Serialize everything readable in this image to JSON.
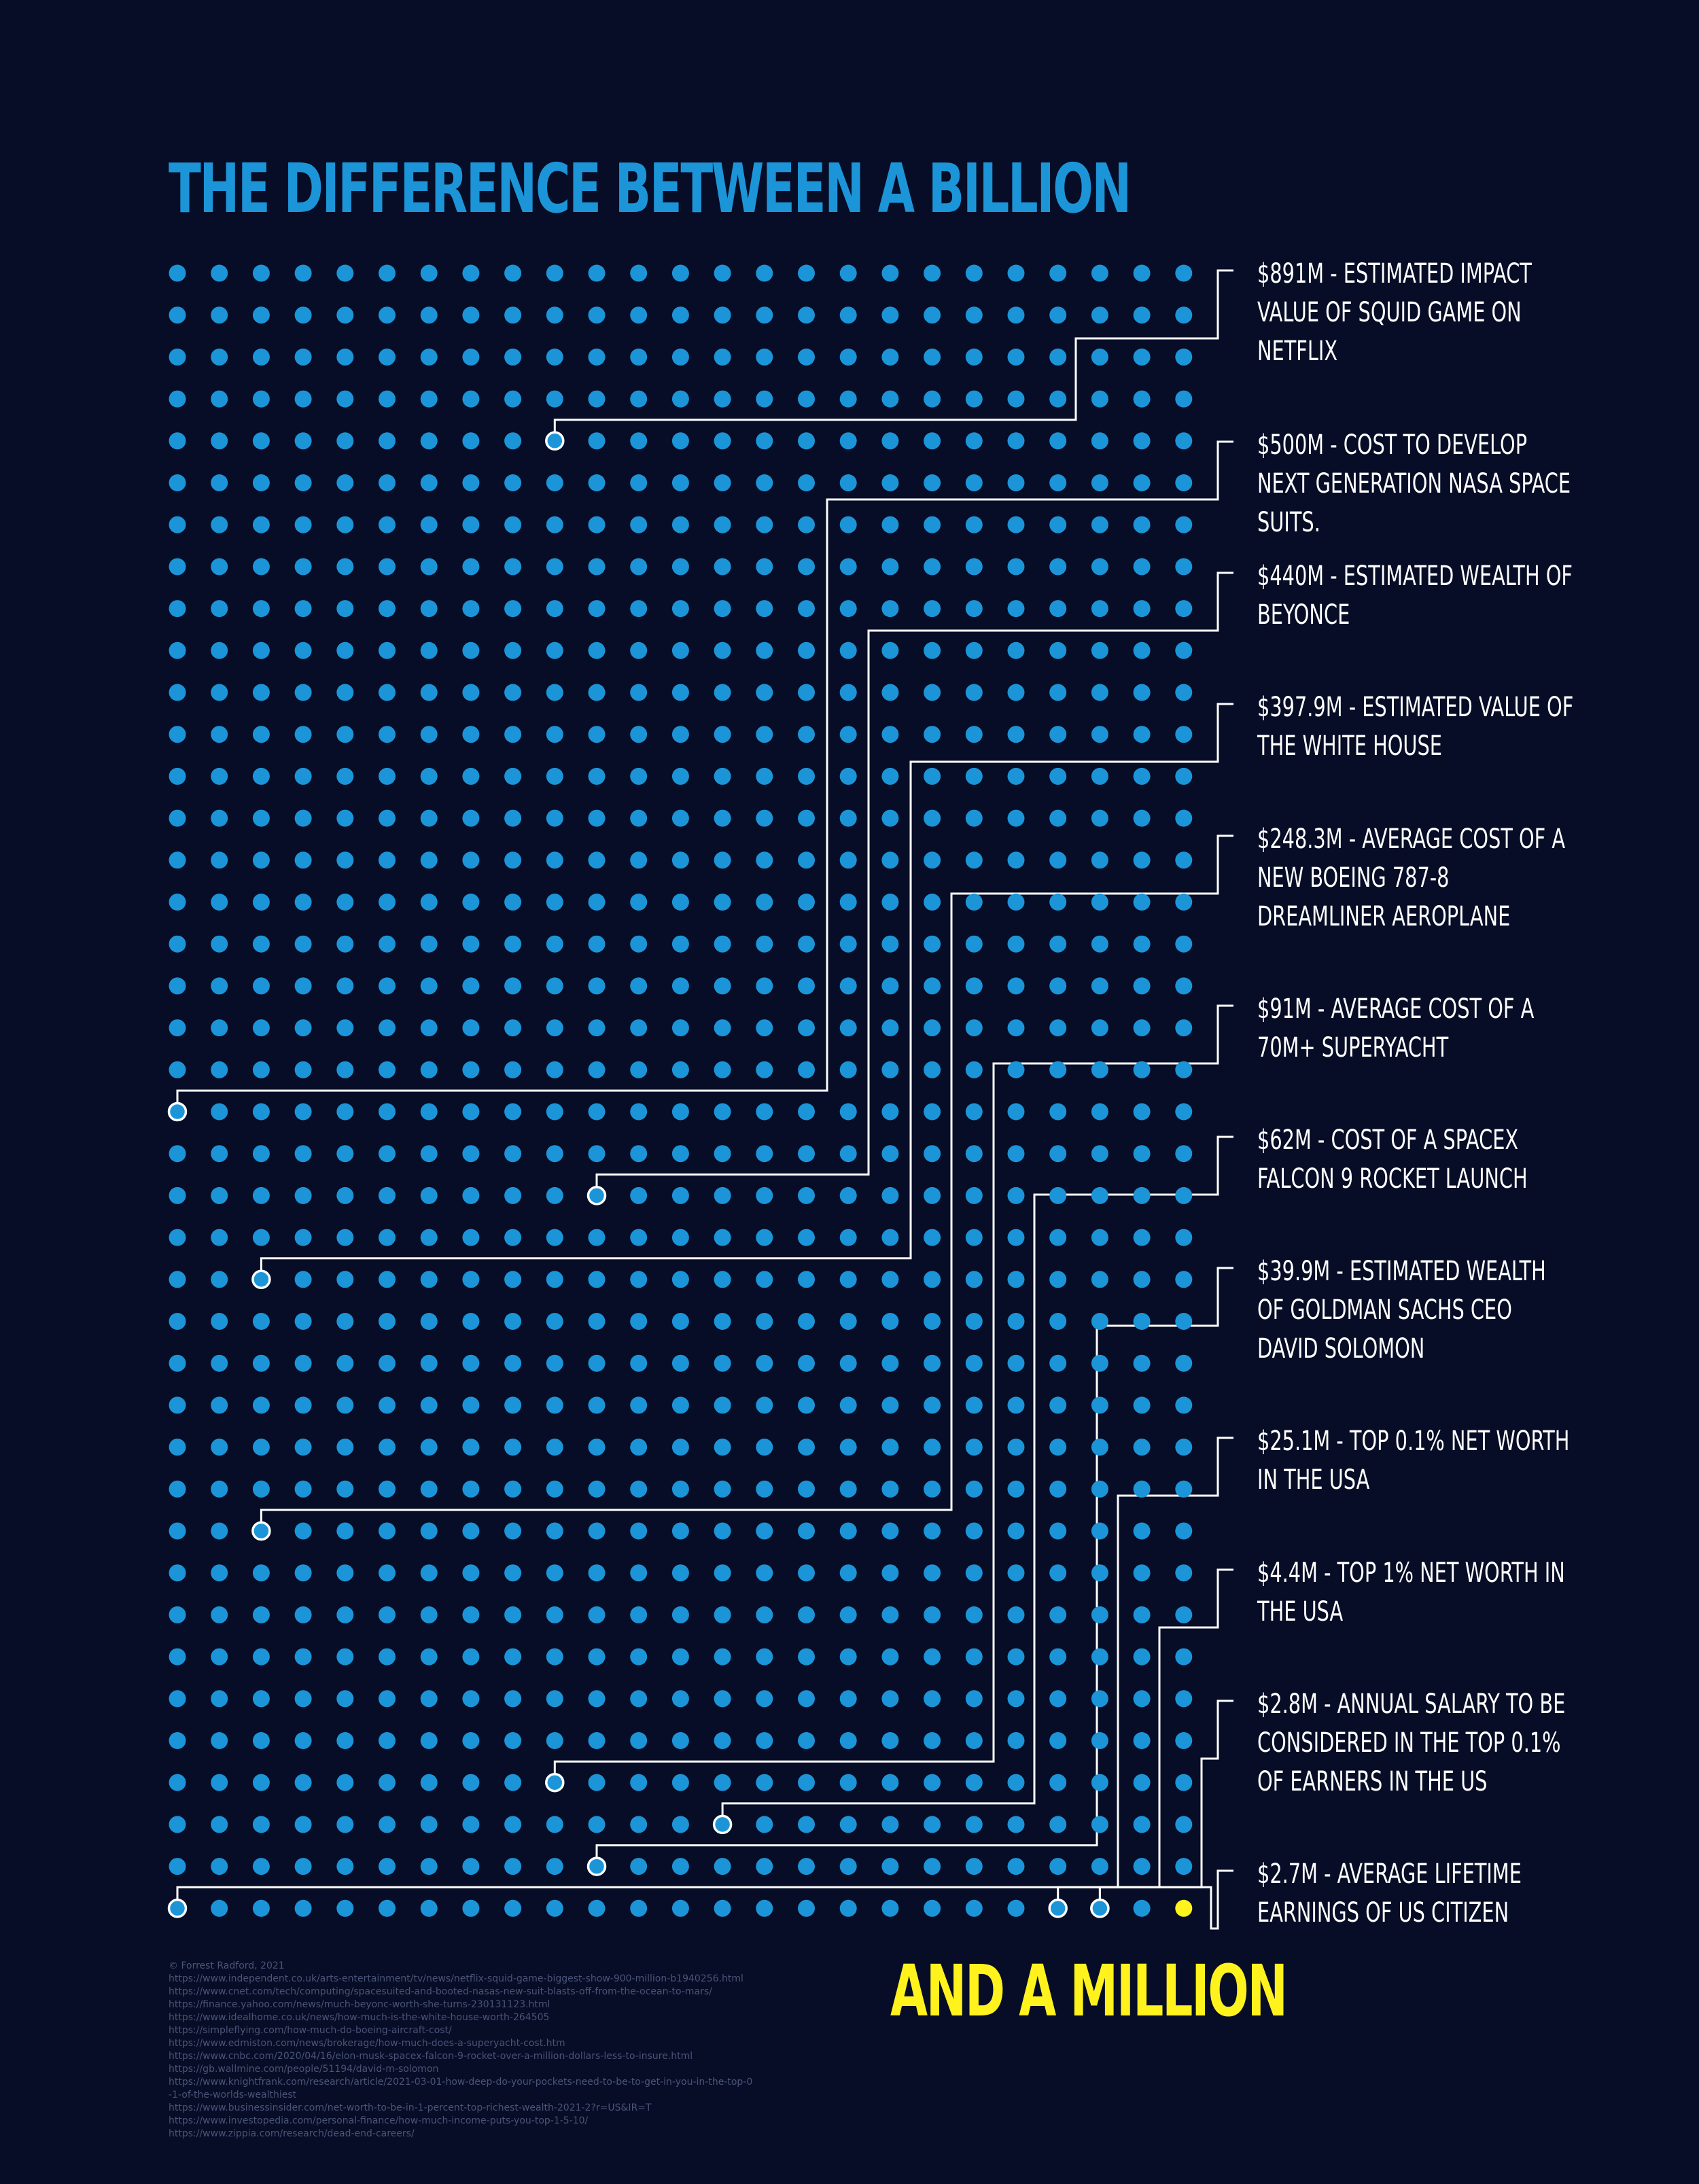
{
  "title": "THE DIFFERENCE BETWEEN A BILLION",
  "subtitle": "AND A MILLION",
  "colors": {
    "background": "#070d26",
    "dot": "#1c95d8",
    "highlight_dot": "#fff21d",
    "marker_dot": "#1c95d8",
    "connector": "#ffffff",
    "title": "#1c95d8",
    "subtitle": "#fff21d"
  },
  "chart_data": {
    "type": "dot-matrix",
    "grid": {
      "columns": 25,
      "rows": 40,
      "dots": 1000
    },
    "unit_per_dot": "$1M",
    "total_represented": "$1B",
    "highlight": {
      "label": "$1M",
      "color": "#fff21d"
    },
    "annotations": [
      {
        "value_millions": 891,
        "label": "$891M - ESTIMATED IMPACT VALUE OF SQUID GAME ON NETFLIX"
      },
      {
        "value_millions": 500,
        "label": "$500M - COST TO DEVELOP NEXT GENERATION NASA SPACE SUITS."
      },
      {
        "value_millions": 440,
        "label": "$440M - ESTIMATED WEALTH OF BEYONCE"
      },
      {
        "value_millions": 397.9,
        "label": "$397.9M - ESTIMATED VALUE OF THE WHITE HOUSE"
      },
      {
        "value_millions": 248.3,
        "label": "$248.3M - AVERAGE COST OF A NEW BOEING 787-8 DREAMLINER AEROPLANE"
      },
      {
        "value_millions": 91,
        "label": "$91M - AVERAGE COST OF A 70M+ SUPERYACHT"
      },
      {
        "value_millions": 62,
        "label": "$62M - COST OF A SPACEX FALCON 9 ROCKET LAUNCH"
      },
      {
        "value_millions": 39.9,
        "label": "$39.9M - ESTIMATED WEALTH OF GOLDMAN SACHS CEO DAVID SOLOMON"
      },
      {
        "value_millions": 25.1,
        "label": "$25.1M - TOP 0.1% NET WORTH IN THE USA"
      },
      {
        "value_millions": 4.4,
        "label": "$4.4M - TOP 1% NET WORTH IN THE USA"
      },
      {
        "value_millions": 2.8,
        "label": "$2.8M - ANNUAL SALARY TO BE CONSIDERED IN THE TOP 0.1% OF EARNERS IN THE US"
      },
      {
        "value_millions": 2.7,
        "label": "$2.7M - AVERAGE LIFETIME EARNINGS OF US CITIZEN"
      }
    ]
  },
  "credits": {
    "author": "© Forrest Radford, 2021",
    "sources": [
      "https://www.independent.co.uk/arts-entertainment/tv/news/netflix-squid-game-biggest-show-900-million-b1940256.html",
      "https://www.cnet.com/tech/computing/spacesuited-and-booted-nasas-new-suit-blasts-off-from-the-ocean-to-mars/",
      "https://finance.yahoo.com/news/much-beyonc-worth-she-turns-230131123.html",
      "https://www.idealhome.co.uk/news/how-much-is-the-white-house-worth-264505",
      "https://simpleflying.com/how-much-do-boeing-aircraft-cost/",
      "https://www.edmiston.com/news/brokerage/how-much-does-a-superyacht-cost.htm",
      "https://www.cnbc.com/2020/04/16/elon-musk-spacex-falcon-9-rocket-over-a-million-dollars-less-to-insure.html",
      "https://gb.wallmine.com/people/51194/david-m-solomon",
      "https://www.knightfrank.com/research/article/2021-03-01-how-deep-do-your-pockets-need-to-be-to-get-in-you-in-the-top-0-1-of-the-worlds-wealthiest",
      "https://www.businessinsider.com/net-worth-to-be-in-1-percent-top-richest-wealth-2021-2?r=US&IR=T",
      "https://www.investopedia.com/personal-finance/how-much-income-puts-you-top-1-5-10/",
      "https://www.zippia.com/research/dead-end-careers/"
    ]
  }
}
